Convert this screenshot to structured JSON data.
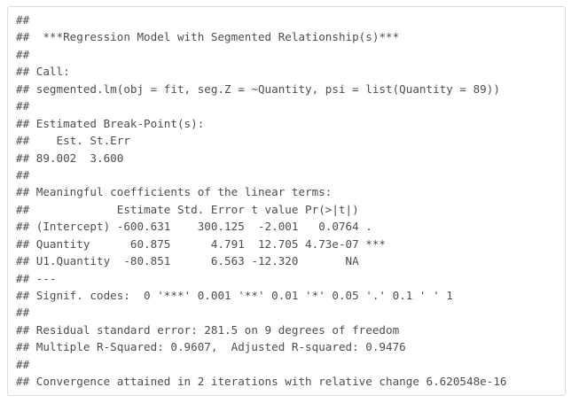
{
  "output": {
    "lines": [
      "##",
      "##  ***Regression Model with Segmented Relationship(s)***",
      "##",
      "## Call:",
      "## segmented.lm(obj = fit, seg.Z = ~Quantity, psi = list(Quantity = 89))",
      "##",
      "## Estimated Break-Point(s):",
      "##    Est. St.Err",
      "## 89.002  3.600",
      "##",
      "## Meaningful coefficients of the linear terms:",
      "##             Estimate Std. Error t value Pr(>|t|)",
      "## (Intercept) -600.631    300.125  -2.001   0.0764 .",
      "## Quantity      60.875      4.791  12.705 4.73e-07 ***",
      "## U1.Quantity  -80.851      6.563 -12.320       NA",
      "## ---",
      "## Signif. codes:  0 '***' 0.001 '**' 0.01 '*' 0.05 '.' 0.1 ' ' 1",
      "##",
      "## Residual standard error: 281.5 on 9 degrees of freedom",
      "## Multiple R-Squared: 0.9607,  Adjusted R-squared: 0.9476",
      "##",
      "## Convergence attained in 2 iterations with relative change 6.620548e-16"
    ]
  }
}
